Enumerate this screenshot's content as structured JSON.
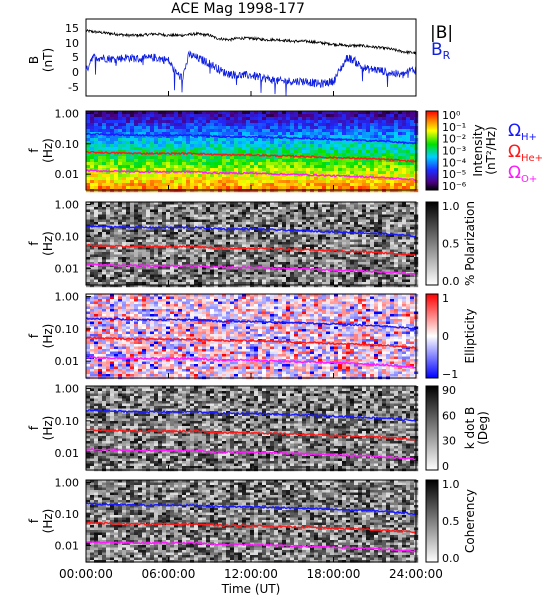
{
  "figure": {
    "title": "ACE Mag 1998-177"
  },
  "colors": {
    "B_total": "#000000",
    "B_R": "#1020e0",
    "H_gyro": "#1a1aff",
    "He_gyro": "#ff1a1a",
    "O_gyro": "#ff1aff"
  },
  "chart_data": [
    {
      "type": "line",
      "panel": "magnetic-field",
      "ylabel_line1": "B",
      "ylabel_line2": "(nT)",
      "yticks": [
        "15",
        "10",
        "5",
        "0",
        "-5"
      ],
      "ylim": [
        -8,
        18
      ],
      "xlim_hours": [
        0,
        24
      ],
      "series": [
        {
          "name": "|B|",
          "x_hours": [
            0,
            1,
            2,
            3,
            4,
            5,
            6,
            7,
            8,
            9,
            9.5,
            10,
            10.5,
            11,
            11.5,
            12,
            13,
            14,
            15,
            16,
            17,
            18,
            19,
            20,
            21,
            22,
            23,
            24
          ],
          "values": [
            14,
            13.5,
            13,
            12.5,
            12.5,
            13,
            12.5,
            12.5,
            13,
            12.5,
            11.5,
            11.2,
            11,
            11.5,
            11.5,
            11.5,
            11,
            11,
            10.5,
            10.5,
            10,
            9.5,
            9,
            9,
            8.5,
            8,
            7,
            6.5
          ]
        },
        {
          "name": "B",
          "name_subscript": "R",
          "x_hours": [
            0,
            0.4,
            1,
            2,
            3,
            4,
            5,
            6,
            6.5,
            7,
            7.5,
            8,
            9,
            10,
            11,
            12,
            13,
            14,
            15,
            16,
            17,
            18,
            18.5,
            19,
            19.5,
            20,
            20.5,
            21,
            22,
            23,
            23.5,
            24
          ],
          "values": [
            0,
            5,
            5,
            4.5,
            5,
            4.5,
            5,
            4,
            0,
            -2,
            6,
            5,
            3,
            0,
            -1,
            -1,
            -2,
            -3,
            -3,
            -3,
            -4,
            -3,
            1,
            5,
            4,
            2,
            1,
            1,
            0,
            -1,
            0.5,
            1
          ]
        }
      ]
    },
    {
      "type": "heatmap",
      "panel": "power-spectrum",
      "ylabel_line1": "f",
      "ylabel_line2": "(Hz)",
      "yticks": [
        "1.00",
        "0.10",
        "0.01"
      ],
      "ylim_hz": [
        0.003,
        1.2
      ],
      "colorbar_label_line1": "Intensity",
      "colorbar_label_line2": "(nT²/Hz)",
      "colorbar_ticks": [
        "10⁰",
        "10⁻¹",
        "10⁻²",
        "10⁻³",
        "10⁻⁴",
        "10⁻⁵",
        "10⁻⁶"
      ],
      "colorbar_range_log10": [
        -6.5,
        0
      ]
    },
    {
      "type": "heatmap",
      "panel": "polarization",
      "ylabel_line1": "f",
      "ylabel_line2": "(Hz)",
      "yticks": [
        "1.00",
        "0.10",
        "0.01"
      ],
      "colorbar_label_line1": "% Polarization",
      "colorbar_label_line2": "",
      "colorbar_ticks": [
        "1.0",
        "0.5",
        "0.0"
      ],
      "colorbar_range": [
        0,
        1
      ]
    },
    {
      "type": "heatmap",
      "panel": "ellipticity",
      "ylabel_line1": "f",
      "ylabel_line2": "(Hz)",
      "yticks": [
        "1.00",
        "0.10",
        "0.01"
      ],
      "colorbar_label_line1": "Ellipticity",
      "colorbar_label_line2": "",
      "colorbar_ticks": [
        "1",
        "0",
        "−1"
      ],
      "colorbar_range": [
        -1,
        1
      ]
    },
    {
      "type": "heatmap",
      "panel": "wave-normal-angle",
      "ylabel_line1": "f",
      "ylabel_line2": "(Hz)",
      "yticks": [
        "1.00",
        "0.10",
        "0.01"
      ],
      "colorbar_label_line1": "k dot B",
      "colorbar_label_line2": "(Deg)",
      "colorbar_ticks": [
        "90",
        "60",
        "30",
        "0"
      ],
      "colorbar_range": [
        0,
        90
      ]
    },
    {
      "type": "heatmap",
      "panel": "coherency",
      "ylabel_line1": "f",
      "ylabel_line2": "(Hz)",
      "yticks": [
        "1.00",
        "0.10",
        "0.01"
      ],
      "colorbar_label_line1": "Coherency",
      "colorbar_label_line2": "",
      "colorbar_ticks": [
        "1.0",
        "0.5",
        "0.0"
      ],
      "colorbar_range": [
        0,
        1
      ]
    }
  ],
  "gyrofrequency_lines": {
    "x_hours": [
      0,
      2,
      4,
      6,
      8,
      9,
      10,
      11,
      12,
      14,
      16,
      18,
      20,
      22,
      24
    ],
    "H_hz": [
      0.21,
      0.2,
      0.19,
      0.19,
      0.19,
      0.18,
      0.17,
      0.17,
      0.17,
      0.16,
      0.15,
      0.14,
      0.13,
      0.12,
      0.1
    ],
    "He_hz": [
      0.053,
      0.05,
      0.048,
      0.048,
      0.048,
      0.045,
      0.043,
      0.043,
      0.043,
      0.04,
      0.038,
      0.035,
      0.033,
      0.03,
      0.026
    ],
    "O_hz": [
      0.013,
      0.0125,
      0.012,
      0.012,
      0.012,
      0.011,
      0.0108,
      0.0108,
      0.0108,
      0.01,
      0.0095,
      0.0088,
      0.0083,
      0.0075,
      0.0065
    ]
  },
  "legend_field": {
    "total": "|B|",
    "radial": "B",
    "radial_sub": "R"
  },
  "legend_gyro": [
    {
      "symbol": "Ω",
      "sub": "H+"
    },
    {
      "symbol": "Ω",
      "sub": "He+"
    },
    {
      "symbol": "Ω",
      "sub": "O+"
    }
  ],
  "xaxis": {
    "label": "Time (UT)",
    "ticks": [
      "00:00:00",
      "06:00:00",
      "12:00:00",
      "18:00:00",
      "24:00:00"
    ],
    "tick_hours": [
      0,
      6,
      12,
      18,
      24
    ]
  }
}
